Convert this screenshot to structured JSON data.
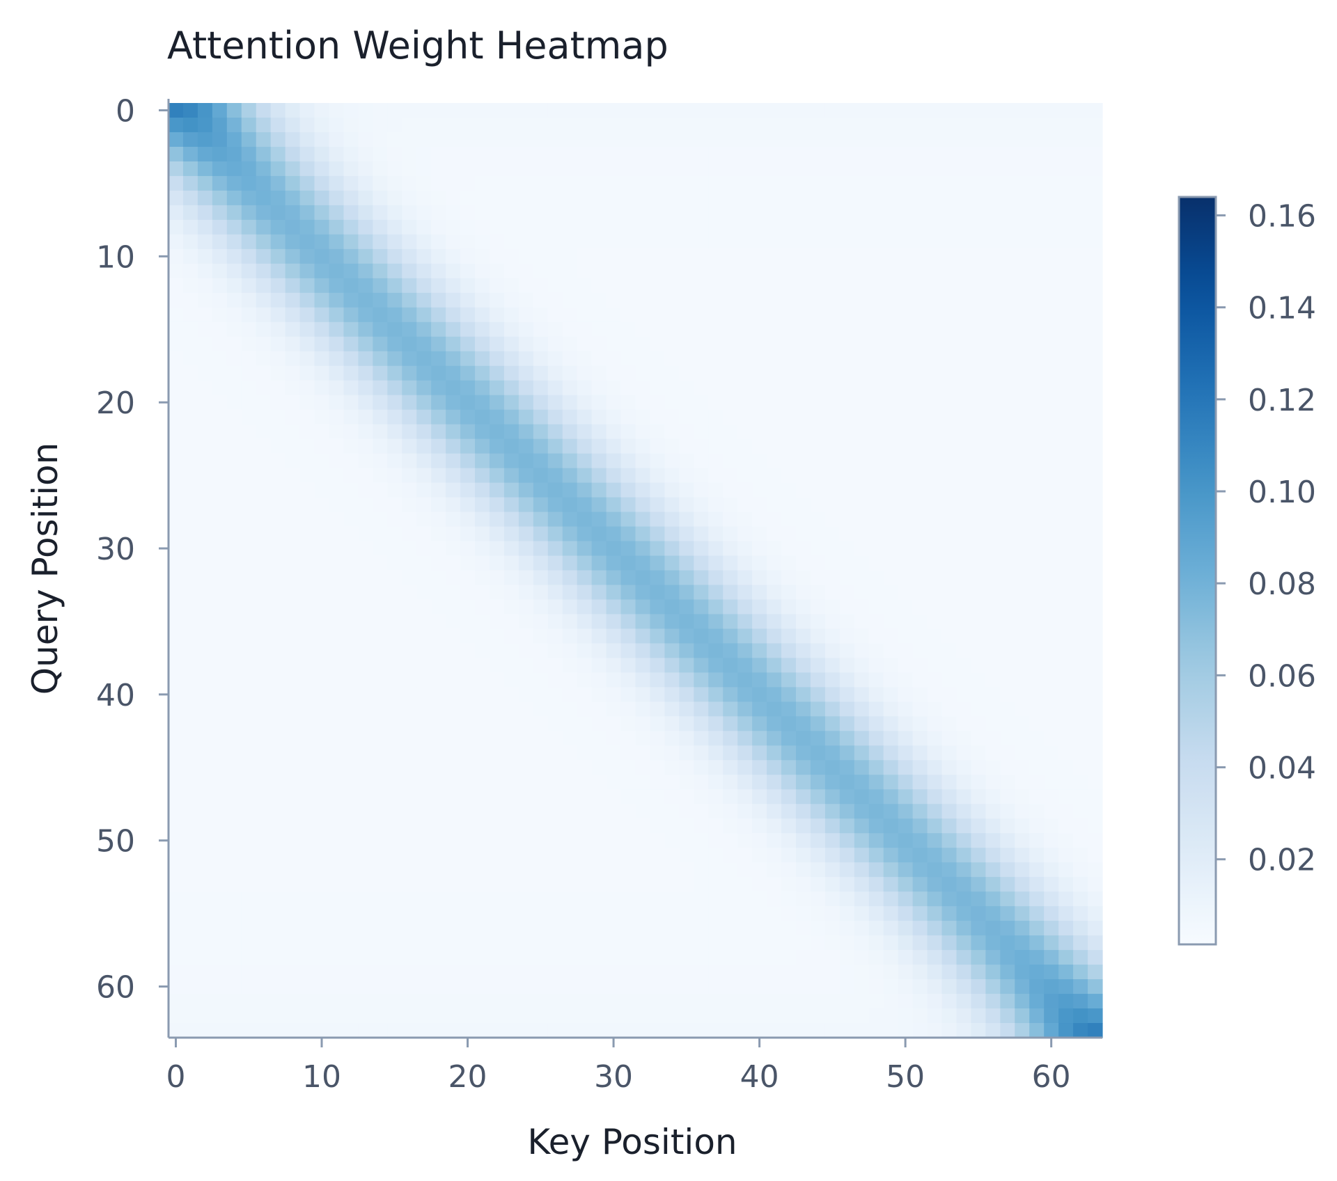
{
  "chart_data": {
    "type": "heatmap",
    "title": "Attention Weight Heatmap",
    "xlabel": "Key Position",
    "ylabel": "Query Position",
    "n_rows": 64,
    "n_cols": 64,
    "x_ticks": [
      0,
      10,
      20,
      30,
      40,
      50,
      60
    ],
    "y_ticks": [
      0,
      10,
      20,
      30,
      40,
      50,
      60
    ],
    "colormap": "Blues",
    "colorbar": {
      "ticks": [
        0.02,
        0.04,
        0.06,
        0.08,
        0.1,
        0.12,
        0.14,
        0.16
      ],
      "tick_labels": [
        "0.02",
        "0.04",
        "0.06",
        "0.08",
        "0.10",
        "0.12",
        "0.14",
        "0.16"
      ],
      "range": [
        0.0015,
        0.164
      ]
    },
    "pattern": "Gaussian band along diagonal (i==j); weight ~0.10 on diagonal, falls off with |i-j|; highest (~0.164) at corners (0,0) and (63,63)",
    "grid": false,
    "legend": "none"
  }
}
